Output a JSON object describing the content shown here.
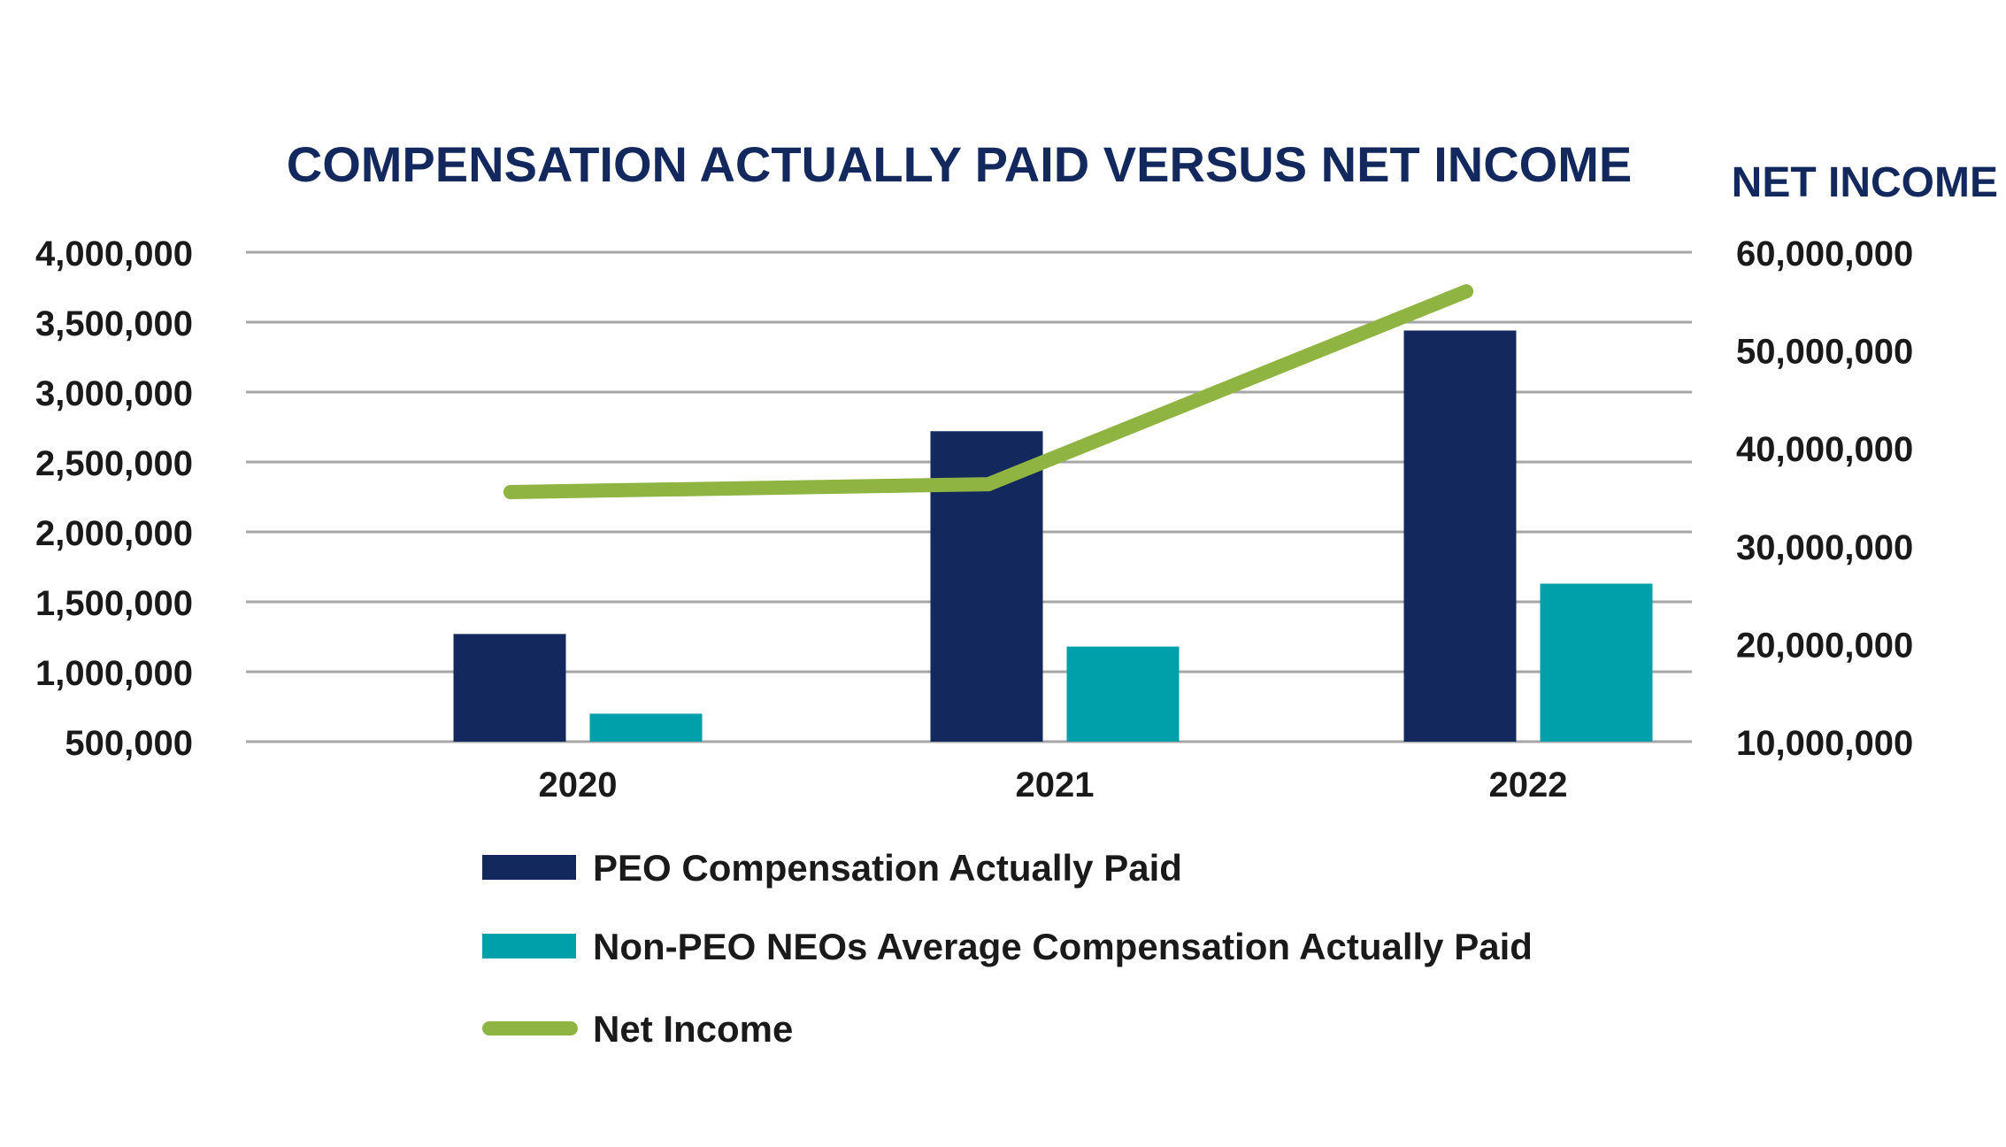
{
  "chart_data": {
    "type": "bar",
    "title": "COMPENSATION ACTUALLY PAID VERSUS NET INCOME",
    "y2label": "NET INCOME",
    "categories": [
      "2020",
      "2021",
      "2022"
    ],
    "ylim": [
      500000,
      4000000
    ],
    "yticks": [
      500000,
      1000000,
      1500000,
      2000000,
      2500000,
      3000000,
      3500000,
      4000000
    ],
    "y2lim": [
      10000000,
      60000000
    ],
    "y2ticks": [
      10000000,
      20000000,
      30000000,
      40000000,
      50000000,
      60000000
    ],
    "grid": true,
    "series": [
      {
        "name": "PEO Compensation Actually Paid",
        "type": "bar",
        "axis": "left",
        "color": "#13285c",
        "values": [
          1270000,
          2720000,
          3440000
        ]
      },
      {
        "name": "Non-PEO NEOs Average Compensation Actually Paid",
        "type": "bar",
        "axis": "left",
        "color": "#00a0aa",
        "values": [
          700000,
          1180000,
          1630000
        ]
      },
      {
        "name": "Net Income",
        "type": "line",
        "axis": "right",
        "color": "#8fb442",
        "values": [
          35500000,
          36300000,
          56000000
        ]
      }
    ],
    "colors": {
      "title": "#13285c",
      "axis_text": "#1a1a1a",
      "grid": "#a6a6a6"
    }
  }
}
